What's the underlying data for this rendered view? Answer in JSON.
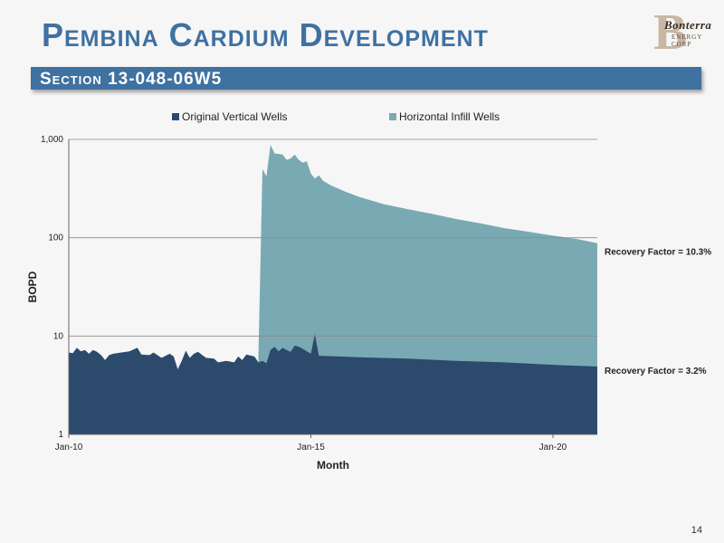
{
  "slide": {
    "title": "Pembina Cardium Development",
    "section": "Section 13-048-06W5",
    "page_number": "14",
    "logo": {
      "name": "Bonterra",
      "sub": "ENERGY CORP"
    },
    "colors": {
      "title": "#3f71a1",
      "banner": "#3f71a1",
      "vertical": "#2c4a6c",
      "infill": "#79aab4"
    }
  },
  "chart_data": {
    "type": "area",
    "stacked": false,
    "title": "",
    "xlabel": "Month",
    "ylabel": "BOPD",
    "yscale": "log",
    "ylim": [
      1,
      1000
    ],
    "xlim": [
      "2010-01",
      "2020-12"
    ],
    "yticks": [
      1,
      10,
      100,
      1000
    ],
    "ytick_labels": [
      "1",
      "10",
      "100",
      "1,000"
    ],
    "xticks": [
      "2010-01",
      "2015-01",
      "2020-01"
    ],
    "xtick_labels": [
      "Jan-10",
      "Jan-15",
      "Jan-20"
    ],
    "grid": true,
    "legend": "top",
    "series": [
      {
        "name": "Horizontal Infill Wells",
        "color": "#79aab4",
        "points": [
          [
            "2013-12",
            6
          ],
          [
            "2014-01",
            500
          ],
          [
            "2014-02",
            420
          ],
          [
            "2014-03",
            880
          ],
          [
            "2014-04",
            720
          ],
          [
            "2014-06",
            700
          ],
          [
            "2014-07",
            620
          ],
          [
            "2014-08",
            640
          ],
          [
            "2014-09",
            700
          ],
          [
            "2014-10",
            620
          ],
          [
            "2014-11",
            580
          ],
          [
            "2014-12",
            600
          ],
          [
            "2015-01",
            450
          ],
          [
            "2015-02",
            400
          ],
          [
            "2015-03",
            430
          ],
          [
            "2015-04",
            380
          ],
          [
            "2015-06",
            340
          ],
          [
            "2015-09",
            300
          ],
          [
            "2016-01",
            260
          ],
          [
            "2016-07",
            220
          ],
          [
            "2017-01",
            195
          ],
          [
            "2017-07",
            175
          ],
          [
            "2018-01",
            155
          ],
          [
            "2018-07",
            140
          ],
          [
            "2019-01",
            125
          ],
          [
            "2019-07",
            115
          ],
          [
            "2020-01",
            105
          ],
          [
            "2020-07",
            97
          ],
          [
            "2020-12",
            88
          ]
        ],
        "annotation": "Recovery Factor =  10.3%"
      },
      {
        "name": "Original Vertical Wells",
        "color": "#2c4a6c",
        "points": [
          [
            "2010-01",
            6.8
          ],
          [
            "2010-02",
            6.7
          ],
          [
            "2010-03",
            7.6
          ],
          [
            "2010-04",
            7.0
          ],
          [
            "2010-05",
            7.2
          ],
          [
            "2010-06",
            6.6
          ],
          [
            "2010-07",
            7.2
          ],
          [
            "2010-08",
            6.9
          ],
          [
            "2010-09",
            6.4
          ],
          [
            "2010-10",
            5.7
          ],
          [
            "2010-11",
            6.4
          ],
          [
            "2010-12",
            6.6
          ],
          [
            "2011-02",
            6.8
          ],
          [
            "2011-04",
            7.0
          ],
          [
            "2011-06",
            7.6
          ],
          [
            "2011-07",
            6.5
          ],
          [
            "2011-09",
            6.4
          ],
          [
            "2011-10",
            6.8
          ],
          [
            "2011-12",
            6.0
          ],
          [
            "2012-02",
            6.6
          ],
          [
            "2012-03",
            6.2
          ],
          [
            "2012-04",
            4.6
          ],
          [
            "2012-05",
            5.6
          ],
          [
            "2012-06",
            7.1
          ],
          [
            "2012-07",
            6.0
          ],
          [
            "2012-08",
            6.6
          ],
          [
            "2012-09",
            6.9
          ],
          [
            "2012-11",
            6.0
          ],
          [
            "2013-01",
            5.9
          ],
          [
            "2013-02",
            5.4
          ],
          [
            "2013-04",
            5.6
          ],
          [
            "2013-06",
            5.4
          ],
          [
            "2013-07",
            6.2
          ],
          [
            "2013-08",
            5.7
          ],
          [
            "2013-09",
            6.5
          ],
          [
            "2013-11",
            6.2
          ],
          [
            "2013-12",
            5.4
          ],
          [
            "2014-01",
            5.6
          ],
          [
            "2014-02",
            5.3
          ],
          [
            "2014-03",
            7.2
          ],
          [
            "2014-04",
            7.8
          ],
          [
            "2014-05",
            7.0
          ],
          [
            "2014-06",
            7.6
          ],
          [
            "2014-07",
            7.2
          ],
          [
            "2014-08",
            6.9
          ],
          [
            "2014-09",
            8.0
          ],
          [
            "2014-10",
            7.8
          ],
          [
            "2014-11",
            7.4
          ],
          [
            "2014-12",
            7.0
          ],
          [
            "2015-01",
            6.6
          ],
          [
            "2015-02",
            10.5
          ],
          [
            "2015-03",
            6.3
          ],
          [
            "2016-01",
            6.1
          ],
          [
            "2017-01",
            5.9
          ],
          [
            "2018-01",
            5.6
          ],
          [
            "2019-01",
            5.4
          ],
          [
            "2020-01",
            5.1
          ],
          [
            "2020-12",
            4.9
          ]
        ],
        "annotation": "Recovery Factor =  3.2%"
      }
    ]
  }
}
